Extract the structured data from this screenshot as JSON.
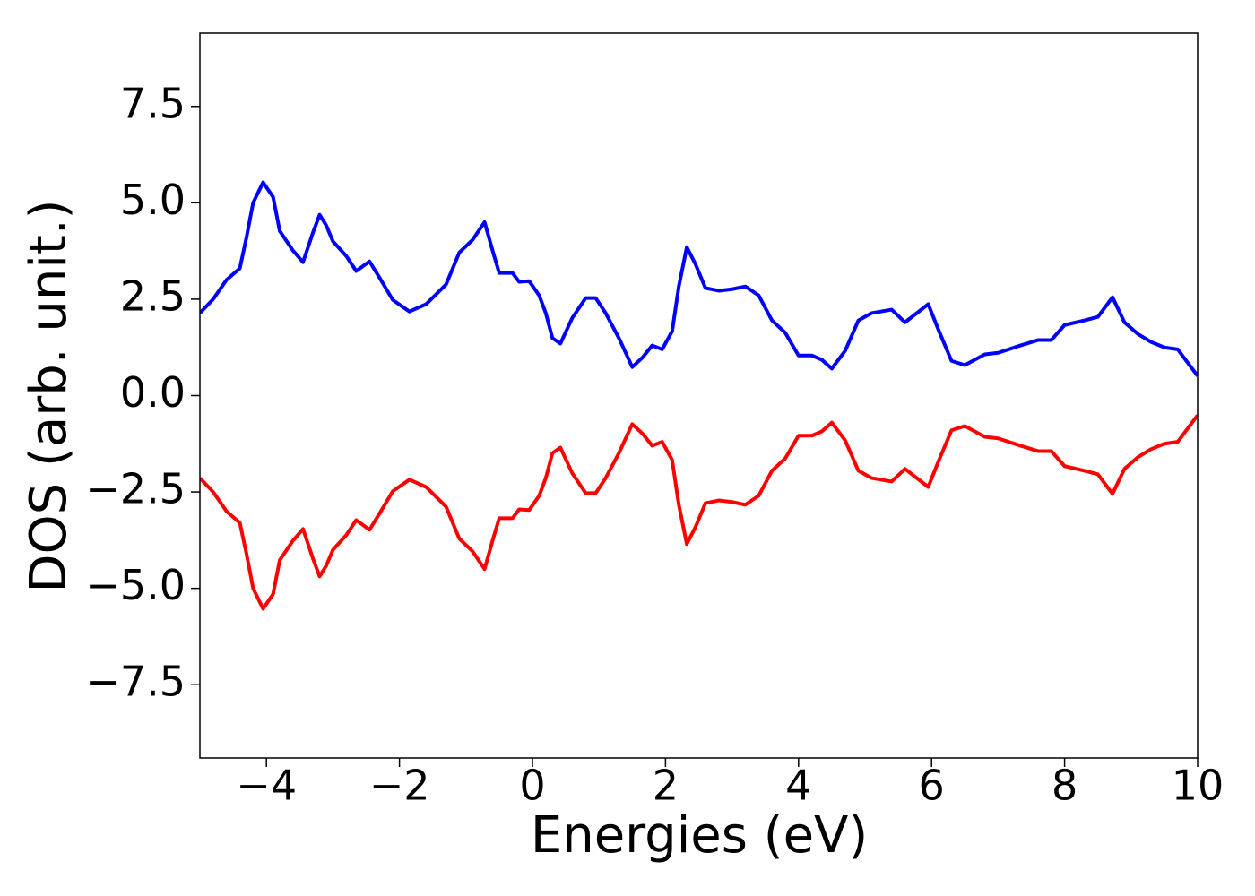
{
  "chart_data": {
    "type": "line",
    "xlabel": "Energies (eV)",
    "ylabel": "DOS (arb. unit.)",
    "x": [
      -5,
      -4.8,
      -4.6,
      -4.4,
      -4.3,
      -4.2,
      -4.05,
      -3.9,
      -3.8,
      -3.6,
      -3.45,
      -3.3,
      -3.2,
      -3.1,
      -3.0,
      -2.8,
      -2.65,
      -2.45,
      -2.3,
      -2.1,
      -1.85,
      -1.6,
      -1.3,
      -1.1,
      -0.9,
      -0.72,
      -0.6,
      -0.5,
      -0.3,
      -0.2,
      -0.05,
      0.1,
      0.2,
      0.3,
      0.42,
      0.6,
      0.8,
      0.95,
      1.1,
      1.3,
      1.5,
      1.65,
      1.8,
      1.95,
      2.1,
      2.2,
      2.32,
      2.45,
      2.6,
      2.8,
      3.0,
      3.2,
      3.4,
      3.6,
      3.8,
      4.0,
      4.2,
      4.35,
      4.5,
      4.7,
      4.9,
      5.1,
      5.4,
      5.6,
      5.95,
      6.1,
      6.3,
      6.5,
      6.8,
      7.0,
      7.3,
      7.6,
      7.8,
      8.0,
      8.3,
      8.5,
      8.72,
      8.9,
      9.1,
      9.3,
      9.5,
      9.7,
      10
    ],
    "series": [
      {
        "color": "#0000ff",
        "values": [
          2.14,
          2.5,
          3.0,
          3.3,
          4.1,
          5.0,
          5.53,
          5.15,
          4.27,
          3.76,
          3.46,
          4.23,
          4.69,
          4.41,
          4.0,
          3.62,
          3.23,
          3.48,
          3.06,
          2.48,
          2.18,
          2.37,
          2.88,
          3.71,
          4.04,
          4.5,
          3.76,
          3.18,
          3.18,
          2.95,
          2.97,
          2.6,
          2.14,
          1.49,
          1.35,
          2.02,
          2.53,
          2.53,
          2.14,
          1.49,
          0.74,
          0.98,
          1.3,
          1.2,
          1.67,
          2.83,
          3.85,
          3.41,
          2.79,
          2.72,
          2.76,
          2.83,
          2.6,
          1.95,
          1.63,
          1.04,
          1.04,
          0.93,
          0.7,
          1.16,
          1.95,
          2.14,
          2.23,
          1.9,
          2.37,
          1.72,
          0.9,
          0.79,
          1.07,
          1.11,
          1.28,
          1.44,
          1.44,
          1.83,
          1.95,
          2.04,
          2.55,
          1.9,
          1.6,
          1.39,
          1.25,
          1.2,
          0.51
        ]
      },
      {
        "color": "#ff0000",
        "values": [
          -2.14,
          -2.5,
          -3.0,
          -3.3,
          -4.1,
          -5.0,
          -5.53,
          -5.15,
          -4.27,
          -3.76,
          -3.46,
          -4.23,
          -4.69,
          -4.41,
          -4.0,
          -3.62,
          -3.23,
          -3.48,
          -3.06,
          -2.48,
          -2.18,
          -2.37,
          -2.88,
          -3.71,
          -4.04,
          -4.5,
          -3.76,
          -3.18,
          -3.18,
          -2.95,
          -2.97,
          -2.6,
          -2.14,
          -1.49,
          -1.35,
          -2.02,
          -2.53,
          -2.53,
          -2.14,
          -1.49,
          -0.74,
          -0.98,
          -1.3,
          -1.2,
          -1.67,
          -2.83,
          -3.85,
          -3.41,
          -2.79,
          -2.72,
          -2.76,
          -2.83,
          -2.6,
          -1.95,
          -1.63,
          -1.04,
          -1.04,
          -0.93,
          -0.7,
          -1.16,
          -1.95,
          -2.14,
          -2.23,
          -1.9,
          -2.37,
          -1.72,
          -0.9,
          -0.79,
          -1.07,
          -1.11,
          -1.28,
          -1.44,
          -1.44,
          -1.83,
          -1.95,
          -2.04,
          -2.55,
          -1.9,
          -1.6,
          -1.39,
          -1.25,
          -1.2,
          -0.51
        ]
      }
    ],
    "xlim": [
      -5,
      10
    ],
    "xticks": [
      {
        "value": -4,
        "label": "−4"
      },
      {
        "value": -2,
        "label": "−2"
      },
      0,
      2,
      4,
      6,
      8,
      10
    ],
    "ylim": [
      -9.4,
      9.4
    ],
    "yticks": [
      {
        "value": -7.5,
        "label": "−7.5"
      },
      {
        "value": -5,
        "label": "−5.0"
      },
      {
        "value": -2.5,
        "label": "−2.5"
      },
      {
        "value": 0,
        "label": "0.0"
      },
      2.5,
      {
        "value": 5,
        "label": "5.0"
      },
      7.5
    ],
    "grid": false
  }
}
